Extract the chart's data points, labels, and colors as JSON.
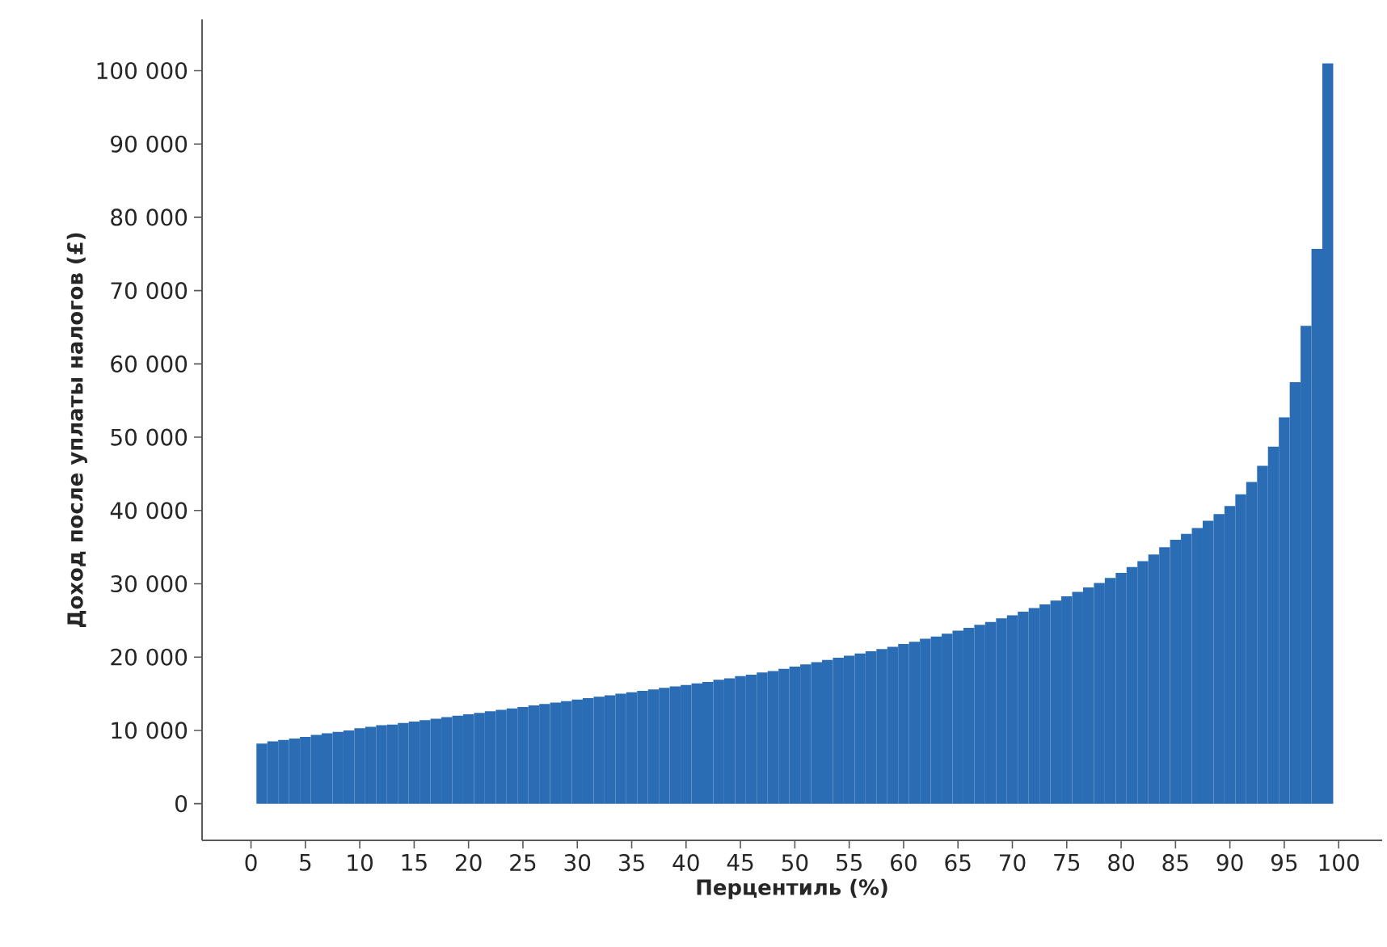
{
  "chart_data": {
    "type": "histogram",
    "xlabel": "Перцентиль (%)",
    "ylabel": "Доход после уплаты налогов (£)",
    "bins": [
      0.5,
      1.5,
      2.5,
      3.5,
      4.5,
      5.5,
      6.5,
      7.5,
      8.5,
      9.5,
      10.5,
      11.5,
      12.5,
      13.5,
      14.5,
      15.5,
      16.5,
      17.5,
      18.5,
      19.5,
      20.5,
      21.5,
      22.5,
      23.5,
      24.5,
      25.5,
      26.5,
      27.5,
      28.5,
      29.5,
      30.5,
      31.5,
      32.5,
      33.5,
      34.5,
      35.5,
      36.5,
      37.5,
      38.5,
      39.5,
      40.5,
      41.5,
      42.5,
      43.5,
      44.5,
      45.5,
      46.5,
      47.5,
      48.5,
      49.5,
      50.5,
      51.5,
      52.5,
      53.5,
      54.5,
      55.5,
      56.5,
      57.5,
      58.5,
      59.5,
      60.5,
      61.5,
      62.5,
      63.5,
      64.5,
      65.5,
      66.5,
      67.5,
      68.5,
      69.5,
      70.5,
      71.5,
      72.5,
      73.5,
      74.5,
      75.5,
      76.5,
      77.5,
      78.5,
      79.5,
      80.5,
      81.5,
      82.5,
      83.5,
      84.5,
      85.5,
      86.5,
      87.5,
      88.5,
      89.5,
      90.5,
      91.5,
      92.5,
      93.5,
      94.5,
      95.5,
      96.5,
      97.5,
      98.5,
      99.5
    ],
    "values": [
      8200,
      8500,
      8700,
      8900,
      9100,
      9400,
      9600,
      9800,
      10000,
      10300,
      10500,
      10700,
      10800,
      11000,
      11200,
      11400,
      11600,
      11800,
      12000,
      12200,
      12400,
      12600,
      12800,
      13000,
      13200,
      13400,
      13600,
      13800,
      14000,
      14200,
      14400,
      14600,
      14800,
      15000,
      15200,
      15400,
      15600,
      15800,
      16000,
      16200,
      16400,
      16600,
      16900,
      17100,
      17400,
      17600,
      17900,
      18100,
      18400,
      18700,
      19000,
      19300,
      19600,
      19900,
      20200,
      20500,
      20800,
      21100,
      21400,
      21800,
      22100,
      22500,
      22800,
      23200,
      23600,
      24000,
      24400,
      24800,
      25300,
      25700,
      26200,
      26700,
      27200,
      27700,
      28300,
      28900,
      29500,
      30100,
      30800,
      31500,
      32300,
      33100,
      34000,
      35000,
      36000,
      36800,
      37600,
      38600,
      39500,
      40600,
      42200,
      43900,
      46100,
      48700,
      52700,
      57500,
      65200,
      75700,
      101000
    ],
    "color": "#2a6db5",
    "xlim": [
      -4.5,
      104
    ],
    "ylim": [
      -5000,
      107000
    ],
    "xticks": [
      0,
      5,
      10,
      15,
      20,
      25,
      30,
      35,
      40,
      45,
      50,
      55,
      60,
      65,
      70,
      75,
      80,
      85,
      90,
      95,
      100
    ],
    "yticks": [
      {
        "value": 0,
        "label": "0"
      },
      {
        "value": 10000,
        "label": "10 000"
      },
      {
        "value": 20000,
        "label": "20 000"
      },
      {
        "value": 30000,
        "label": "30 000"
      },
      {
        "value": 40000,
        "label": "40 000"
      },
      {
        "value": 50000,
        "label": "50 000"
      },
      {
        "value": 60000,
        "label": "60 000"
      },
      {
        "value": 70000,
        "label": "70 000"
      },
      {
        "value": 80000,
        "label": "80 000"
      },
      {
        "value": 90000,
        "label": "90 000"
      },
      {
        "value": 100000,
        "label": "100 000"
      }
    ]
  }
}
